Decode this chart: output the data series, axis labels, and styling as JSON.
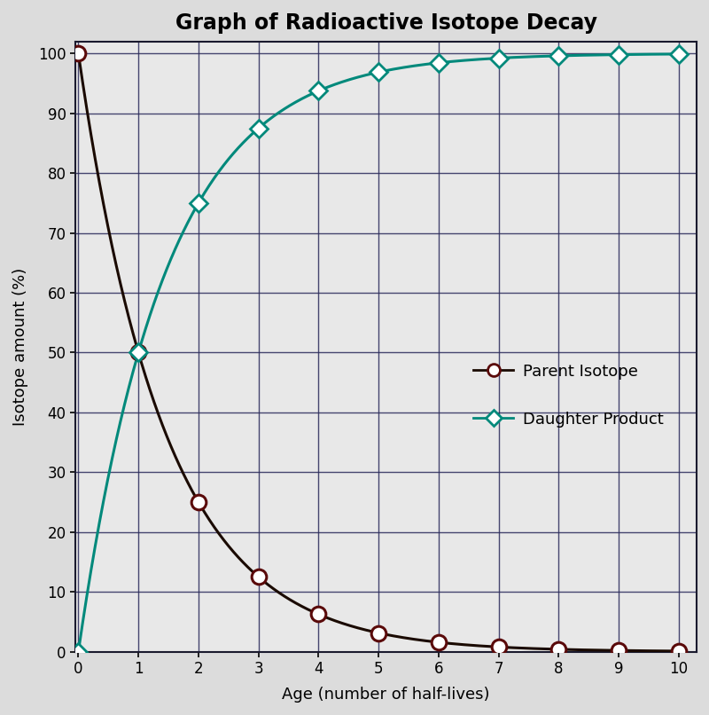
{
  "title": "Graph of Radioactive Isotope Decay",
  "xlabel": "Age (number of half-lives)",
  "ylabel": "Isotope amount (%)",
  "xlim": [
    -0.05,
    10.3
  ],
  "ylim": [
    0,
    102
  ],
  "xticks": [
    0,
    1,
    2,
    3,
    4,
    5,
    6,
    7,
    8,
    9,
    10
  ],
  "yticks": [
    0,
    10,
    20,
    30,
    40,
    50,
    60,
    70,
    80,
    90,
    100
  ],
  "parent_x": [
    0,
    1,
    2,
    3,
    4,
    5,
    6,
    7,
    8,
    9,
    10
  ],
  "parent_y": [
    100,
    50,
    25,
    12.5,
    6.25,
    3.125,
    1.5625,
    0.78125,
    0.390625,
    0.1953125,
    0.09765625
  ],
  "daughter_x": [
    0,
    1,
    2,
    3,
    4,
    5,
    6,
    7,
    8,
    9,
    10
  ],
  "daughter_y": [
    0,
    50,
    75,
    87.5,
    93.75,
    96.875,
    98.4375,
    99.21875,
    99.609375,
    99.8046875,
    99.90234375
  ],
  "parent_line_color": "#1a0a00",
  "parent_marker_edge_color": "#5a0a0a",
  "daughter_color": "#00897B",
  "title_fontsize": 17,
  "axis_label_fontsize": 13,
  "tick_fontsize": 12,
  "legend_fontsize": 13,
  "background_color": "#dcdcdc",
  "plot_bg_color": "#e8e8e8",
  "grid_color": "#2a2a5a",
  "legend_parent": "Parent Isotope",
  "legend_daughter": "Daughter Product"
}
